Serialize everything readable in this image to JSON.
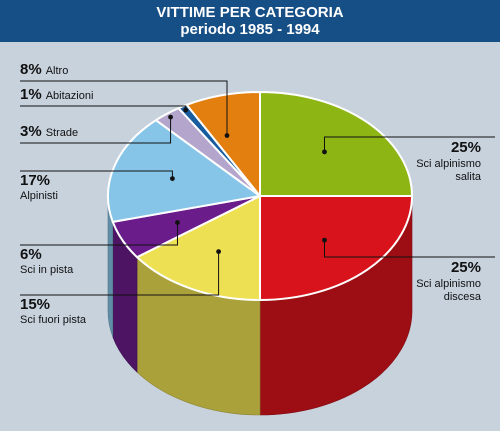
{
  "header": {
    "title": "VITTIME PER CATEGORIA",
    "subtitle": "periodo 1985 - 1994"
  },
  "chart_data": {
    "type": "pie",
    "title": "VITTIME PER CATEGORIA",
    "subtitle": "periodo 1985 - 1994",
    "slices": [
      {
        "label": "Sci alpinismo salita",
        "label_lines": [
          "Sci alpinismo",
          "salita"
        ],
        "value": 25,
        "value_label": "25%",
        "color": "#8db513",
        "side": "right"
      },
      {
        "label": "Sci alpinismo discesa",
        "label_lines": [
          "Sci alpinismo",
          "discesa"
        ],
        "value": 25,
        "value_label": "25%",
        "color": "#d9131c",
        "side": "right"
      },
      {
        "label": "Sci fuori pista",
        "label_lines": [
          "Sci fuori pista"
        ],
        "value": 15,
        "value_label": "15%",
        "color": "#ede052",
        "side": "left"
      },
      {
        "label": "Sci in pista",
        "label_lines": [
          "Sci in pista"
        ],
        "value": 6,
        "value_label": "6%",
        "color": "#6a1c8a",
        "side": "left"
      },
      {
        "label": "Alpinisti",
        "label_lines": [
          "Alpinisti"
        ],
        "value": 17,
        "value_label": "17%",
        "color": "#86c5e8",
        "side": "left"
      },
      {
        "label": "Strade",
        "label_lines": [
          "Strade"
        ],
        "value": 3,
        "value_label": "3%",
        "color": "#b3a5cc",
        "side": "left"
      },
      {
        "label": "Abitazioni",
        "label_lines": [
          "Abitazioni"
        ],
        "value": 1,
        "value_label": "1%",
        "color": "#175c9e",
        "side": "left"
      },
      {
        "label": "Altro",
        "label_lines": [
          "Altro"
        ],
        "value": 8,
        "value_label": "8%",
        "color": "#e37f0f",
        "side": "left"
      }
    ]
  }
}
